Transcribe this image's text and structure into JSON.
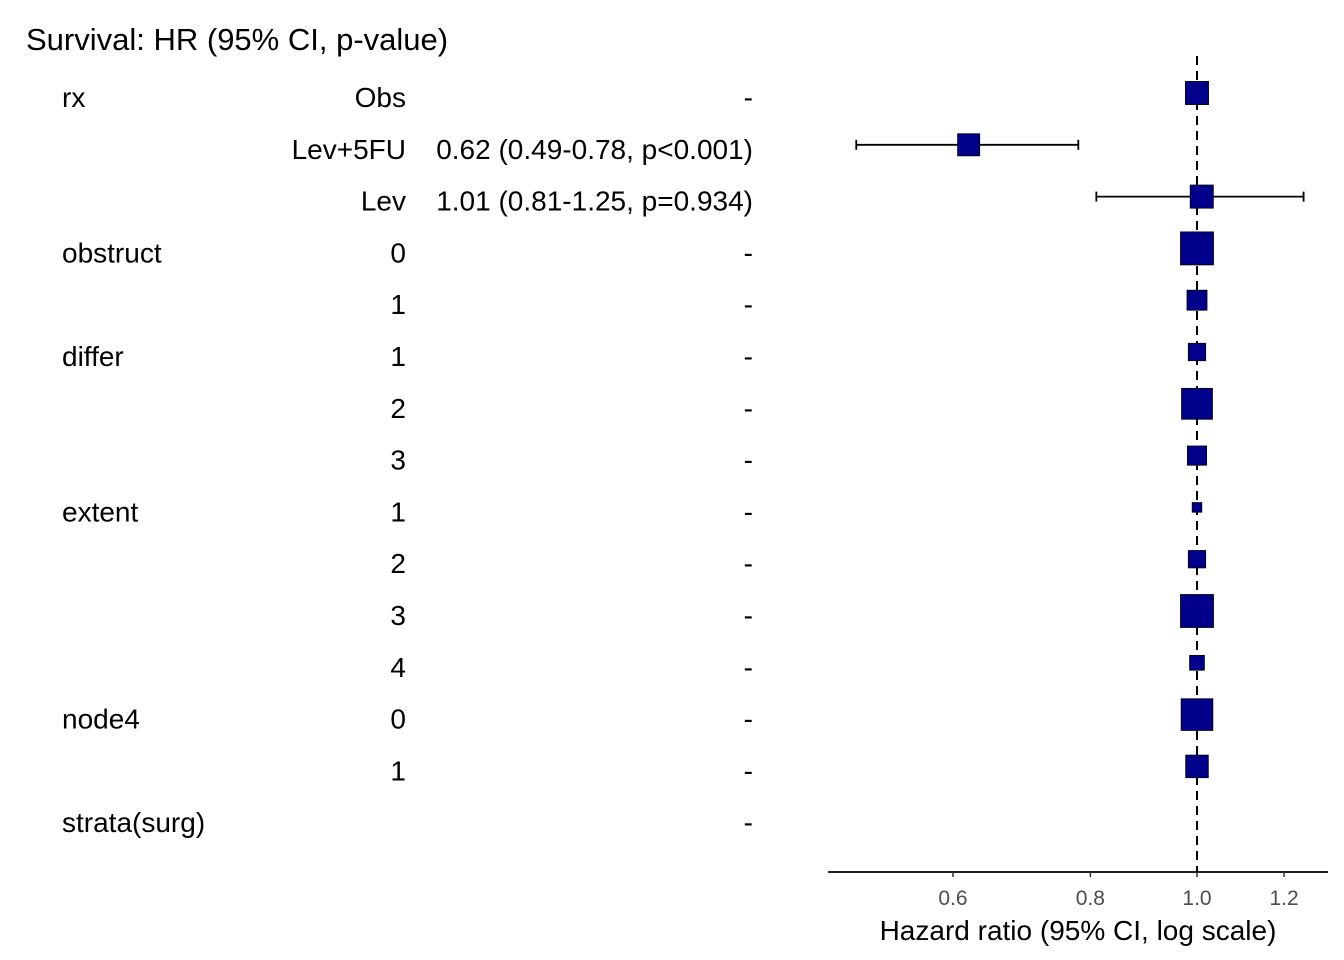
{
  "chart_data": {
    "type": "forest",
    "title": "Survival: HR (95% CI, p-value)",
    "xlabel": "Hazard ratio (95% CI, log scale)",
    "x_scale": "log",
    "xlim": [
      0.45,
      1.31
    ],
    "x_ticks": [
      0.6,
      0.8,
      1.0,
      1.2
    ],
    "x_tick_labels": [
      "0.6",
      "0.8",
      "1.0",
      "1.2"
    ],
    "reference_line": 1.0,
    "marker_color": "#00008B",
    "rows": [
      {
        "variable": "rx",
        "level": "Obs",
        "estimate_text": "-",
        "hr": 1.0,
        "lower": null,
        "upper": null,
        "weight": 0.62
      },
      {
        "variable": "",
        "level": "Lev+5FU",
        "estimate_text": "0.62 (0.49-0.78, p<0.001)",
        "hr": 0.62,
        "lower": 0.49,
        "upper": 0.78,
        "weight": 0.58
      },
      {
        "variable": "",
        "level": "Lev",
        "estimate_text": "1.01 (0.81-1.25, p=0.934)",
        "hr": 1.01,
        "lower": 0.81,
        "upper": 1.25,
        "weight": 0.62
      },
      {
        "variable": "obstruct",
        "level": "0",
        "estimate_text": "-",
        "hr": 1.0,
        "lower": null,
        "upper": null,
        "weight": 1.0
      },
      {
        "variable": "",
        "level": "1",
        "estimate_text": "-",
        "hr": 1.0,
        "lower": null,
        "upper": null,
        "weight": 0.5
      },
      {
        "variable": "differ",
        "level": "1",
        "estimate_text": "-",
        "hr": 1.0,
        "lower": null,
        "upper": null,
        "weight": 0.4
      },
      {
        "variable": "",
        "level": "2",
        "estimate_text": "-",
        "hr": 1.0,
        "lower": null,
        "upper": null,
        "weight": 0.92
      },
      {
        "variable": "",
        "level": "3",
        "estimate_text": "-",
        "hr": 1.0,
        "lower": null,
        "upper": null,
        "weight": 0.47
      },
      {
        "variable": "extent",
        "level": "1",
        "estimate_text": "-",
        "hr": 1.0,
        "lower": null,
        "upper": null,
        "weight": 0.1
      },
      {
        "variable": "",
        "level": "2",
        "estimate_text": "-",
        "hr": 1.0,
        "lower": null,
        "upper": null,
        "weight": 0.4
      },
      {
        "variable": "",
        "level": "3",
        "estimate_text": "-",
        "hr": 1.0,
        "lower": null,
        "upper": null,
        "weight": 1.0
      },
      {
        "variable": "",
        "level": "4",
        "estimate_text": "-",
        "hr": 1.0,
        "lower": null,
        "upper": null,
        "weight": 0.3
      },
      {
        "variable": "node4",
        "level": "0",
        "estimate_text": "-",
        "hr": 1.0,
        "lower": null,
        "upper": null,
        "weight": 0.95
      },
      {
        "variable": "",
        "level": "1",
        "estimate_text": "-",
        "hr": 1.0,
        "lower": null,
        "upper": null,
        "weight": 0.6
      },
      {
        "variable": "strata(surg)",
        "level": "",
        "estimate_text": "-",
        "hr": null,
        "lower": null,
        "upper": null,
        "weight": 0
      }
    ]
  }
}
